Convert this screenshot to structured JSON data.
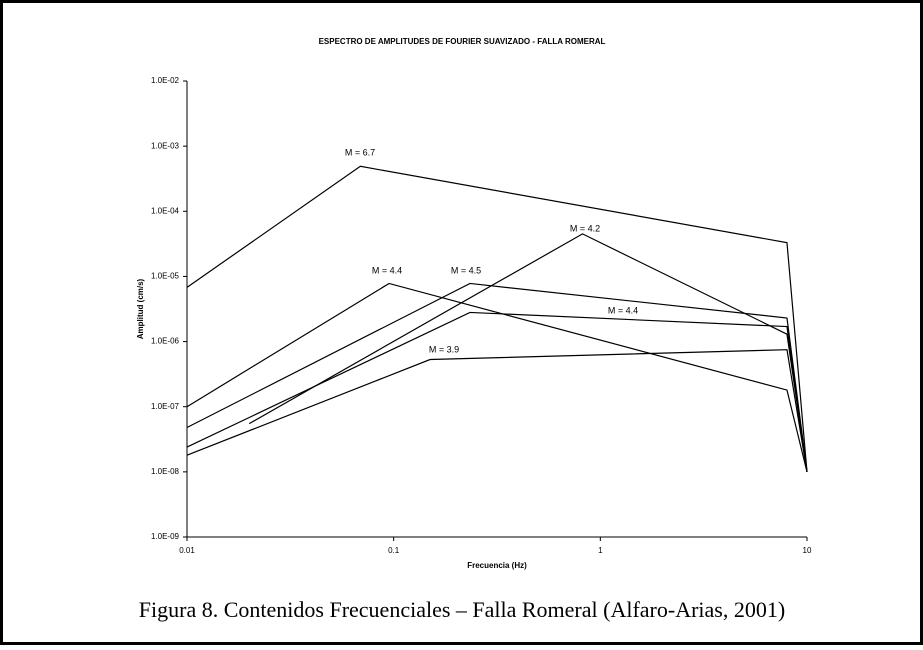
{
  "chart_data": {
    "type": "line",
    "title": "ESPECTRO DE AMPLITUDES DE FOURIER SUAVIZADO - FALLA ROMERAL",
    "x_label": "Frecuencia (Hz)",
    "y_label": "Amplitud (cm/s)",
    "caption": "Figura 8. Contenidos Frecuenciales – Falla Romeral (Alfaro-Arias, 2001)",
    "xscale": "log",
    "yscale": "log",
    "xlim": [
      0.01,
      10
    ],
    "ylim": [
      1e-09,
      0.01
    ],
    "xticks": [
      0.01,
      0.1,
      1,
      10
    ],
    "yticks": [
      {
        "value": 0.01,
        "label": "1.0E-02"
      },
      {
        "value": 0.001,
        "label": "1.0E-03"
      },
      {
        "value": 0.0001,
        "label": "1.0E-04"
      },
      {
        "value": 1e-05,
        "label": "1.0E-05"
      },
      {
        "value": 1e-06,
        "label": "1.0E-06"
      },
      {
        "value": 1e-07,
        "label": "1.0E-07"
      },
      {
        "value": 1e-08,
        "label": "1.0E-08"
      },
      {
        "value": 1e-09,
        "label": "1.0E-09"
      }
    ],
    "series": [
      {
        "name": "M = 6.7",
        "color": "#000000",
        "x": [
          0.01,
          0.069,
          8.0,
          10
        ],
        "values": [
          6.8e-06,
          0.00049,
          3.3e-05,
          1e-08
        ]
      },
      {
        "name": "M = 4.4",
        "color": "#000000",
        "x": [
          0.01,
          0.095,
          8.0,
          10
        ],
        "values": [
          1e-07,
          7.8e-06,
          1.8e-07,
          1e-08
        ]
      },
      {
        "name": "M = 4.5",
        "color": "#000000",
        "x": [
          0.01,
          0.234,
          8.0,
          10
        ],
        "values": [
          4.8e-08,
          7.8e-06,
          2.3e-06,
          1e-08
        ]
      },
      {
        "name": "M = 4.2",
        "color": "#000000",
        "x": [
          0.02,
          0.82,
          8.0,
          10
        ],
        "values": [
          5.5e-08,
          4.5e-05,
          1.3e-06,
          1e-08
        ]
      },
      {
        "name": "M = 4.4",
        "color": "#000000",
        "x": [
          0.01,
          0.234,
          8.0,
          10
        ],
        "values": [
          2.4e-08,
          2.8e-06,
          1.7e-06,
          1e-08
        ]
      },
      {
        "name": "M = 3.9",
        "color": "#000000",
        "x": [
          0.01,
          0.15,
          8.0,
          10
        ],
        "values": [
          1.8e-08,
          5.3e-07,
          7.5e-07,
          1e-08
        ]
      }
    ]
  }
}
